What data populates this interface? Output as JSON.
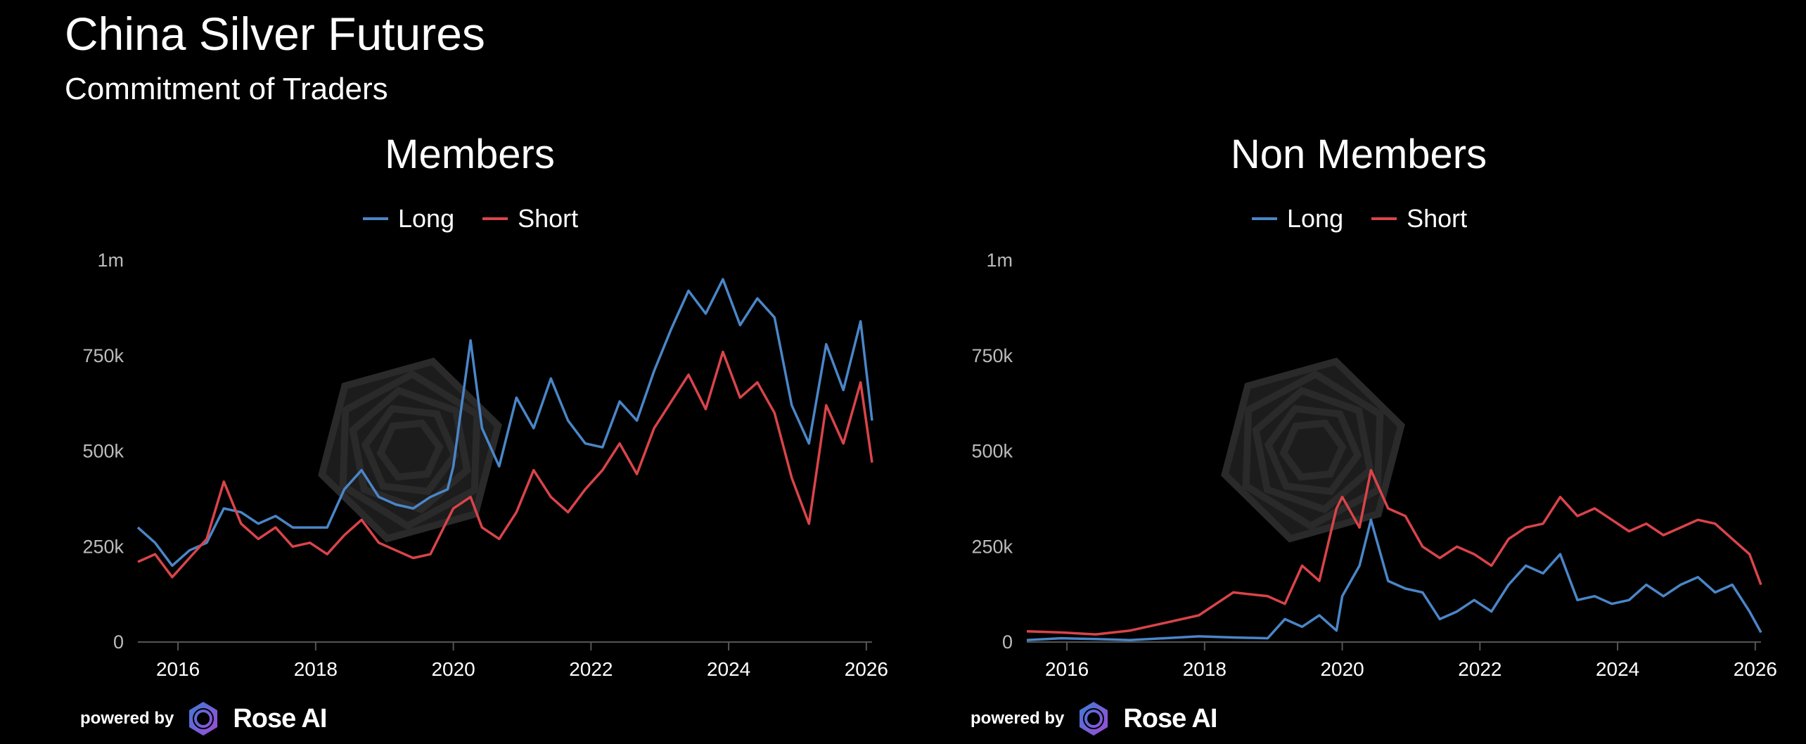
{
  "title": "China Silver Futures",
  "subtitle": "Commitment of Traders",
  "brand": {
    "powered_by": "powered by",
    "name": "Rose AI"
  },
  "colors": {
    "long": "#4a86c8",
    "short": "#d9444a",
    "axis": "#555555",
    "tick_text": "#bbbbbb",
    "background": "#000000"
  },
  "chart_data": [
    {
      "type": "line",
      "title": "Members",
      "legend": [
        "Long",
        "Short"
      ],
      "legend_position": "top-center",
      "grid": false,
      "xlim": [
        "2015-06",
        "2026-02"
      ],
      "ylim": [
        0,
        1000000
      ],
      "x_ticks": [
        "2016",
        "2018",
        "2020",
        "2022",
        "2024",
        "2026"
      ],
      "y_ticks": [
        "0",
        "250k",
        "500k",
        "750k",
        "1m"
      ],
      "series": [
        {
          "name": "Long",
          "points": [
            [
              "2015-06",
              300000
            ],
            [
              "2015-09",
              260000
            ],
            [
              "2015-12",
              200000
            ],
            [
              "2016-03",
              240000
            ],
            [
              "2016-06",
              260000
            ],
            [
              "2016-09",
              350000
            ],
            [
              "2016-12",
              340000
            ],
            [
              "2017-03",
              310000
            ],
            [
              "2017-06",
              330000
            ],
            [
              "2017-09",
              300000
            ],
            [
              "2017-12",
              300000
            ],
            [
              "2018-03",
              300000
            ],
            [
              "2018-06",
              400000
            ],
            [
              "2018-09",
              450000
            ],
            [
              "2018-12",
              380000
            ],
            [
              "2019-03",
              360000
            ],
            [
              "2019-06",
              350000
            ],
            [
              "2019-09",
              380000
            ],
            [
              "2019-12",
              400000
            ],
            [
              "2020-01",
              460000
            ],
            [
              "2020-04",
              790000
            ],
            [
              "2020-06",
              560000
            ],
            [
              "2020-09",
              460000
            ],
            [
              "2020-12",
              640000
            ],
            [
              "2021-03",
              560000
            ],
            [
              "2021-06",
              690000
            ],
            [
              "2021-09",
              580000
            ],
            [
              "2021-12",
              520000
            ],
            [
              "2022-03",
              510000
            ],
            [
              "2022-06",
              630000
            ],
            [
              "2022-09",
              580000
            ],
            [
              "2022-12",
              710000
            ],
            [
              "2023-03",
              820000
            ],
            [
              "2023-06",
              920000
            ],
            [
              "2023-09",
              860000
            ],
            [
              "2023-12",
              950000
            ],
            [
              "2024-03",
              830000
            ],
            [
              "2024-06",
              900000
            ],
            [
              "2024-09",
              850000
            ],
            [
              "2024-12",
              620000
            ],
            [
              "2025-03",
              520000
            ],
            [
              "2025-06",
              780000
            ],
            [
              "2025-09",
              660000
            ],
            [
              "2025-12",
              840000
            ],
            [
              "2026-02",
              580000
            ]
          ]
        },
        {
          "name": "Short",
          "points": [
            [
              "2015-06",
              210000
            ],
            [
              "2015-09",
              230000
            ],
            [
              "2015-12",
              170000
            ],
            [
              "2016-03",
              220000
            ],
            [
              "2016-06",
              270000
            ],
            [
              "2016-09",
              420000
            ],
            [
              "2016-12",
              310000
            ],
            [
              "2017-03",
              270000
            ],
            [
              "2017-06",
              300000
            ],
            [
              "2017-09",
              250000
            ],
            [
              "2017-12",
              260000
            ],
            [
              "2018-03",
              230000
            ],
            [
              "2018-06",
              280000
            ],
            [
              "2018-09",
              320000
            ],
            [
              "2018-12",
              260000
            ],
            [
              "2019-03",
              240000
            ],
            [
              "2019-06",
              220000
            ],
            [
              "2019-09",
              230000
            ],
            [
              "2019-12",
              320000
            ],
            [
              "2020-01",
              350000
            ],
            [
              "2020-04",
              380000
            ],
            [
              "2020-06",
              300000
            ],
            [
              "2020-09",
              270000
            ],
            [
              "2020-12",
              340000
            ],
            [
              "2021-03",
              450000
            ],
            [
              "2021-06",
              380000
            ],
            [
              "2021-09",
              340000
            ],
            [
              "2021-12",
              400000
            ],
            [
              "2022-03",
              450000
            ],
            [
              "2022-06",
              520000
            ],
            [
              "2022-09",
              440000
            ],
            [
              "2022-12",
              560000
            ],
            [
              "2023-03",
              630000
            ],
            [
              "2023-06",
              700000
            ],
            [
              "2023-09",
              610000
            ],
            [
              "2023-12",
              760000
            ],
            [
              "2024-03",
              640000
            ],
            [
              "2024-06",
              680000
            ],
            [
              "2024-09",
              600000
            ],
            [
              "2024-12",
              430000
            ],
            [
              "2025-03",
              310000
            ],
            [
              "2025-06",
              620000
            ],
            [
              "2025-09",
              520000
            ],
            [
              "2025-12",
              680000
            ],
            [
              "2026-02",
              470000
            ]
          ]
        }
      ]
    },
    {
      "type": "line",
      "title": "Non Members",
      "legend": [
        "Long",
        "Short"
      ],
      "legend_position": "top-center",
      "grid": false,
      "xlim": [
        "2015-06",
        "2026-02"
      ],
      "ylim": [
        0,
        1000000
      ],
      "x_ticks": [
        "2016",
        "2018",
        "2020",
        "2022",
        "2024",
        "2026"
      ],
      "y_ticks": [
        "0",
        "250k",
        "500k",
        "750k",
        "1m"
      ],
      "series": [
        {
          "name": "Long",
          "points": [
            [
              "2015-06",
              5000
            ],
            [
              "2015-12",
              10000
            ],
            [
              "2016-06",
              8000
            ],
            [
              "2016-12",
              5000
            ],
            [
              "2017-06",
              10000
            ],
            [
              "2017-12",
              15000
            ],
            [
              "2018-06",
              12000
            ],
            [
              "2018-12",
              10000
            ],
            [
              "2019-03",
              60000
            ],
            [
              "2019-06",
              40000
            ],
            [
              "2019-09",
              70000
            ],
            [
              "2019-12",
              30000
            ],
            [
              "2020-01",
              120000
            ],
            [
              "2020-04",
              200000
            ],
            [
              "2020-06",
              320000
            ],
            [
              "2020-09",
              160000
            ],
            [
              "2020-12",
              140000
            ],
            [
              "2021-03",
              130000
            ],
            [
              "2021-06",
              60000
            ],
            [
              "2021-09",
              80000
            ],
            [
              "2021-12",
              110000
            ],
            [
              "2022-03",
              80000
            ],
            [
              "2022-06",
              150000
            ],
            [
              "2022-09",
              200000
            ],
            [
              "2022-12",
              180000
            ],
            [
              "2023-03",
              230000
            ],
            [
              "2023-06",
              110000
            ],
            [
              "2023-09",
              120000
            ],
            [
              "2023-12",
              100000
            ],
            [
              "2024-03",
              110000
            ],
            [
              "2024-06",
              150000
            ],
            [
              "2024-09",
              120000
            ],
            [
              "2024-12",
              150000
            ],
            [
              "2025-03",
              170000
            ],
            [
              "2025-06",
              130000
            ],
            [
              "2025-09",
              150000
            ],
            [
              "2025-12",
              80000
            ],
            [
              "2026-02",
              25000
            ]
          ]
        },
        {
          "name": "Short",
          "points": [
            [
              "2015-06",
              28000
            ],
            [
              "2015-12",
              25000
            ],
            [
              "2016-06",
              20000
            ],
            [
              "2016-12",
              30000
            ],
            [
              "2017-06",
              50000
            ],
            [
              "2017-12",
              70000
            ],
            [
              "2018-06",
              130000
            ],
            [
              "2018-12",
              120000
            ],
            [
              "2019-03",
              100000
            ],
            [
              "2019-06",
              200000
            ],
            [
              "2019-09",
              160000
            ],
            [
              "2019-12",
              350000
            ],
            [
              "2020-01",
              380000
            ],
            [
              "2020-04",
              300000
            ],
            [
              "2020-06",
              450000
            ],
            [
              "2020-09",
              350000
            ],
            [
              "2020-12",
              330000
            ],
            [
              "2021-03",
              250000
            ],
            [
              "2021-06",
              220000
            ],
            [
              "2021-09",
              250000
            ],
            [
              "2021-12",
              230000
            ],
            [
              "2022-03",
              200000
            ],
            [
              "2022-06",
              270000
            ],
            [
              "2022-09",
              300000
            ],
            [
              "2022-12",
              310000
            ],
            [
              "2023-03",
              380000
            ],
            [
              "2023-06",
              330000
            ],
            [
              "2023-09",
              350000
            ],
            [
              "2023-12",
              320000
            ],
            [
              "2024-03",
              290000
            ],
            [
              "2024-06",
              310000
            ],
            [
              "2024-09",
              280000
            ],
            [
              "2024-12",
              300000
            ],
            [
              "2025-03",
              320000
            ],
            [
              "2025-06",
              310000
            ],
            [
              "2025-09",
              270000
            ],
            [
              "2025-12",
              230000
            ],
            [
              "2026-02",
              150000
            ]
          ]
        }
      ]
    }
  ]
}
